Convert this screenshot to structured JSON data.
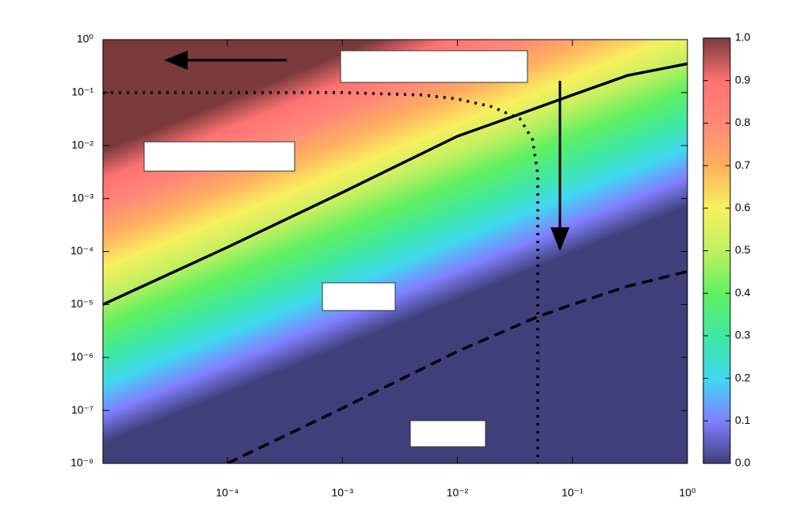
{
  "chart_data": {
    "type": "contour",
    "xscale": "log",
    "yscale": "log",
    "xlim": [
      8.3e-06,
      1
    ],
    "ylim": [
      1e-08,
      1
    ],
    "xticks": [
      {
        "value": 0.0001,
        "label": "10⁻⁴"
      },
      {
        "value": 0.001,
        "label": "10⁻³"
      },
      {
        "value": 0.01,
        "label": "10⁻²"
      },
      {
        "value": 0.1,
        "label": "10⁻¹"
      },
      {
        "value": 1,
        "label": "10⁰"
      }
    ],
    "yticks": [
      {
        "value": 1e-08,
        "label": "10⁻⁸"
      },
      {
        "value": 1e-07,
        "label": "10⁻⁷"
      },
      {
        "value": 1e-06,
        "label": "10⁻⁶"
      },
      {
        "value": 1e-05,
        "label": "10⁻⁵"
      },
      {
        "value": 0.0001,
        "label": "10⁻⁴"
      },
      {
        "value": 0.001,
        "label": "10⁻³"
      },
      {
        "value": 0.01,
        "label": "10⁻²"
      },
      {
        "value": 0.1,
        "label": "10⁻¹"
      },
      {
        "value": 1,
        "label": "10⁰"
      }
    ],
    "zlim": [
      0,
      1
    ],
    "zticks": [
      {
        "value": 0,
        "label": "0.0"
      },
      0.1,
      0.2,
      0.3,
      0.4,
      0.5,
      0.6,
      0.7,
      0.8,
      0.9,
      {
        "value": 1,
        "label": "1.0"
      }
    ],
    "series": [
      {
        "style": "solid",
        "color": "#000000",
        "x": [
          8.3e-06,
          0.0001,
          0.001,
          0.01,
          0.03,
          0.1,
          0.3,
          1
        ],
        "y": [
          1e-05,
          0.00012,
          0.0013,
          0.015,
          0.035,
          0.09,
          0.21,
          0.35
        ]
      },
      {
        "style": "dashed",
        "color": "#000000",
        "x": [
          0.0001,
          0.001,
          0.01,
          0.05,
          0.1,
          0.3,
          1
        ],
        "y": [
          1e-08,
          1.1e-07,
          1.3e-06,
          5.9e-06,
          1e-05,
          2.2e-05,
          4.2e-05
        ]
      },
      {
        "style": "dotted",
        "color": "#000000",
        "x": [
          8.3e-06,
          0.001,
          0.005,
          0.01,
          0.02,
          0.035,
          0.045,
          0.05,
          0.05
        ],
        "y": [
          0.1,
          0.1,
          0.09,
          0.076,
          0.054,
          0.032,
          0.013,
          0.0029,
          1e-08
        ]
      }
    ]
  }
}
